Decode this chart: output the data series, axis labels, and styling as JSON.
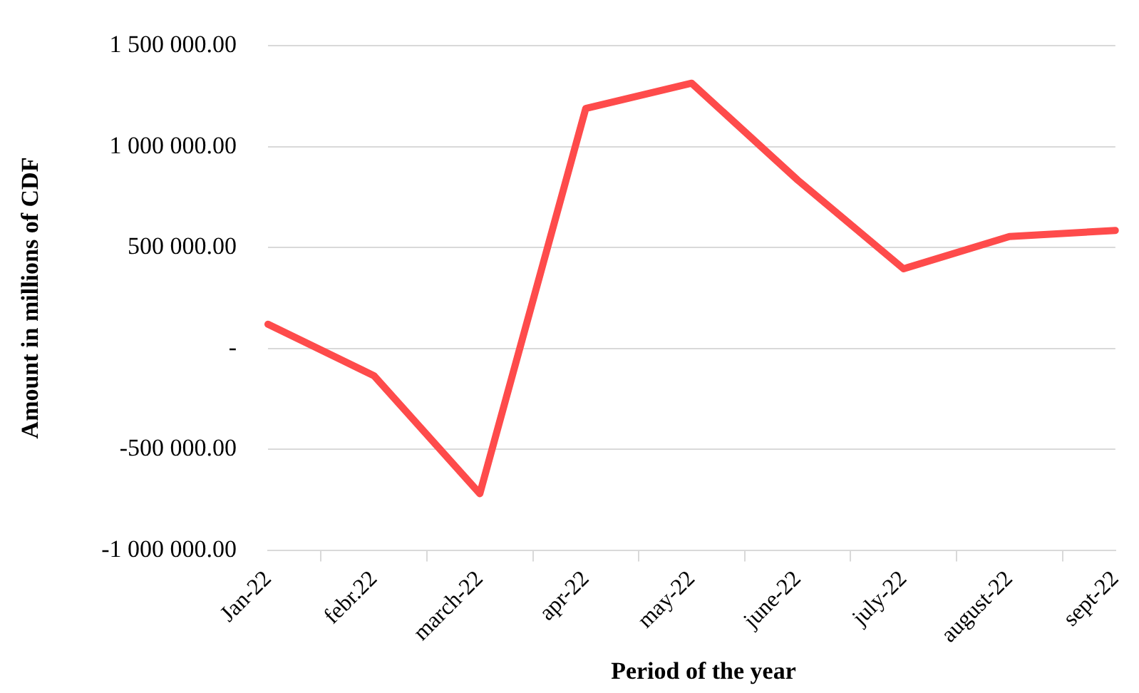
{
  "chart_data": {
    "type": "line",
    "xlabel": "Period of the year",
    "ylabel": "Amount in millions of CDF",
    "categories": [
      "Jan-22",
      "febr.22",
      "march-22",
      "apr-22",
      "may-22",
      "june-22",
      "july-22",
      "august-22",
      "sept-22"
    ],
    "series": [
      {
        "color": "#fe4b4b",
        "values": [
          120000,
          -135000,
          -720000,
          1190000,
          1315000,
          835000,
          395000,
          555000,
          585000
        ]
      }
    ],
    "ylim": [
      -1000000,
      1500000
    ],
    "yticks": [
      {
        "value": -1000000,
        "label": "-1 000 000.00"
      },
      {
        "value": -500000,
        "label": "-500 000.00"
      },
      {
        "value": 0,
        "label": "-"
      },
      {
        "value": 500000,
        "label": "500 000.00"
      },
      {
        "value": 1000000,
        "label": "1 000 000.00"
      },
      {
        "value": 1500000,
        "label": "1 500 000.00"
      }
    ],
    "grid": "y",
    "legend": false,
    "marker": "none",
    "line_style": "solid"
  }
}
